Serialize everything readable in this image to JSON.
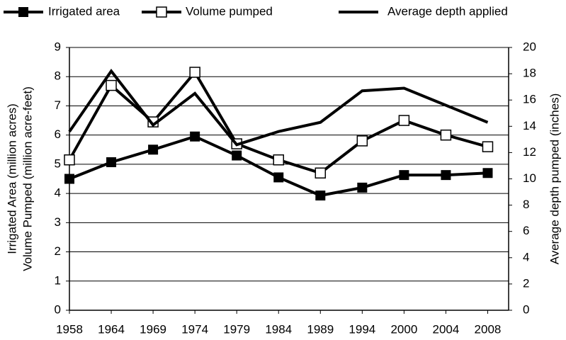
{
  "chart_data": {
    "type": "line",
    "categories": [
      "1958",
      "1964",
      "1969",
      "1974",
      "1979",
      "1984",
      "1989",
      "1994",
      "2000",
      "2004",
      "2008"
    ],
    "series": [
      {
        "name": "Irrigated area",
        "color": "#000000",
        "marker": "filled-square",
        "values": [
          4.5,
          5.07,
          5.5,
          5.95,
          5.3,
          4.55,
          3.93,
          4.2,
          4.63,
          4.63,
          4.7
        ]
      },
      {
        "name": "Volume pumped",
        "color": "#000000",
        "marker": "open-square",
        "values": [
          5.15,
          7.7,
          6.45,
          8.15,
          5.7,
          5.15,
          4.7,
          5.8,
          6.5,
          6.0,
          5.6
        ]
      },
      {
        "name": "Average depth applied",
        "color": "#000000",
        "marker": "none",
        "axis": "y2",
        "values": [
          13.6,
          18.2,
          14.1,
          16.5,
          12.6,
          13.6,
          14.3,
          16.7,
          16.9,
          15.6,
          14.3
        ]
      }
    ],
    "ylabel": [
      "Irrigated Area (million acres)",
      "Volume Pumped (million acre-feet)"
    ],
    "y2label": "Average depth pumped (inches)",
    "ylim": [
      0,
      9
    ],
    "yticks": [
      0,
      1,
      2,
      3,
      4,
      5,
      6,
      7,
      8,
      9
    ],
    "y2lim": [
      0,
      20
    ],
    "y2ticks": [
      0,
      2,
      4,
      6,
      8,
      10,
      12,
      14,
      16,
      18,
      20
    ],
    "grid": true,
    "legend": "top"
  }
}
